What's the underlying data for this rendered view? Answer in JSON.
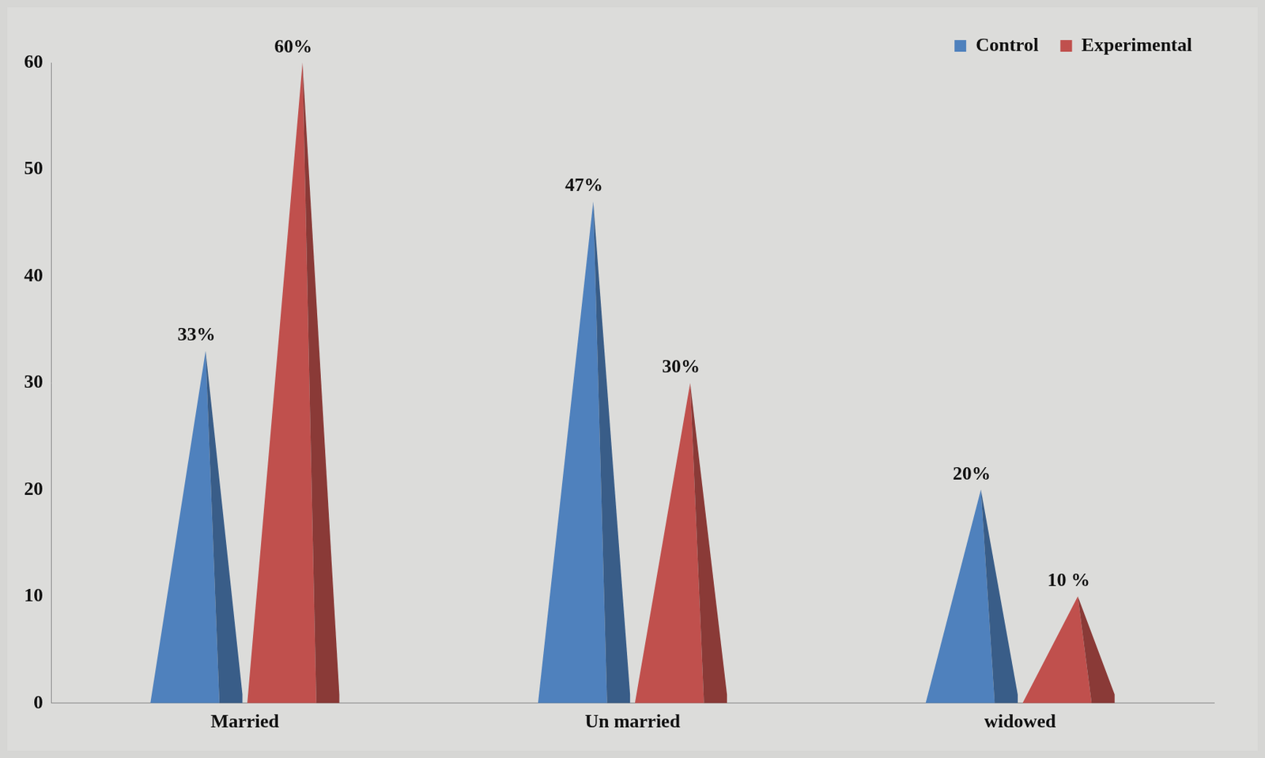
{
  "chart_data": {
    "type": "bar",
    "categories": [
      "Married",
      "Un married",
      "widowed"
    ],
    "series": [
      {
        "name": "Control",
        "color": "#4f81bd",
        "values": [
          33,
          47,
          20
        ],
        "value_labels": [
          "33%",
          "47%",
          "20%"
        ]
      },
      {
        "name": "Experimental",
        "color": "#c0504d",
        "values": [
          60,
          30,
          10
        ],
        "value_labels": [
          "60%",
          "30%",
          "10 %"
        ]
      }
    ],
    "ylim": [
      0,
      60
    ],
    "yticks": [
      0,
      10,
      20,
      30,
      40,
      50,
      60
    ],
    "grid": false,
    "legend": "upper right",
    "data_labels": true,
    "marker": "pyramid"
  }
}
